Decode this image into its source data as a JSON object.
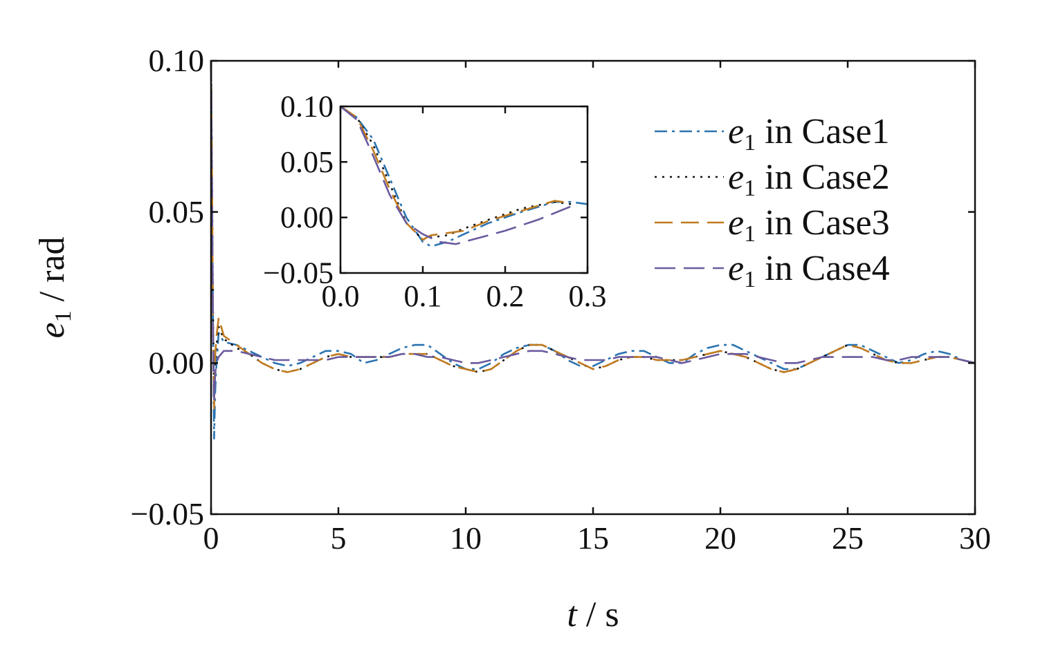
{
  "chart_data": [
    {
      "type": "line",
      "role": "main",
      "title": "",
      "xlabel": {
        "var": "t",
        "unit": " / s"
      },
      "ylabel": {
        "var": "e",
        "sub": "1",
        "unit": " / rad"
      },
      "xlim": [
        0,
        30
      ],
      "ylim": [
        -0.05,
        0.1
      ],
      "xticks": [
        0,
        5,
        10,
        15,
        20,
        25,
        30
      ],
      "xtick_labels": [
        "0",
        "5",
        "10",
        "15",
        "20",
        "25",
        "30"
      ],
      "yticks": [
        -0.05,
        0.0,
        0.05,
        0.1
      ],
      "ytick_labels": [
        "−0.05",
        "0.00",
        "0.05",
        "0.10"
      ],
      "grid": false,
      "legend_position": "top-right",
      "series": [
        {
          "name": "e1 in Case1",
          "legend_var": "e",
          "legend_sub": "1",
          "legend_text": " in Case1",
          "color": "#2a73b0",
          "dash": "18,7,4,7",
          "x": [
            0,
            0.03,
            0.08,
            0.12,
            0.16,
            0.2,
            0.3,
            0.5,
            1,
            1.5,
            2,
            2.5,
            3,
            3.5,
            4,
            4.5,
            5,
            5.5,
            6,
            6.5,
            7,
            7.5,
            8,
            8.5,
            9,
            9.5,
            10,
            10.5,
            11,
            11.5,
            12,
            12.5,
            13,
            13.5,
            14,
            14.5,
            15,
            15.5,
            16,
            16.5,
            17,
            17.5,
            18,
            18.5,
            19,
            19.5,
            20,
            20.5,
            21,
            21.5,
            22,
            22.5,
            23,
            23.5,
            24,
            24.5,
            25,
            25.5,
            26,
            26.5,
            27,
            27.5,
            28,
            28.5,
            29,
            29.5,
            30
          ],
          "y": [
            0.1,
            0.07,
            0.01,
            -0.025,
            -0.01,
            -0.002,
            0.01,
            0.007,
            0.006,
            0.004,
            0.002,
            0.0,
            -0.001,
            0.0,
            0.002,
            0.004,
            0.004,
            0.003,
            0.0,
            0.001,
            0.003,
            0.005,
            0.006,
            0.006,
            0.003,
            0.0,
            -0.002,
            -0.002,
            0.0,
            0.003,
            0.005,
            0.006,
            0.006,
            0.004,
            0.001,
            -0.001,
            -0.001,
            0.001,
            0.003,
            0.004,
            0.004,
            0.002,
            0.0,
            0.0,
            0.003,
            0.005,
            0.006,
            0.006,
            0.004,
            0.002,
            0.0,
            -0.002,
            -0.002,
            0.0,
            0.002,
            0.004,
            0.006,
            0.006,
            0.004,
            0.002,
            0.0,
            0.001,
            0.003,
            0.004,
            0.003,
            0.001,
            0.0
          ]
        },
        {
          "name": "e1 in Case2",
          "legend_var": "e",
          "legend_sub": "1",
          "legend_text": " in Case2",
          "color": "#111111",
          "dash": "3,8",
          "x": [
            0,
            0.03,
            0.08,
            0.12,
            0.16,
            0.2,
            0.3,
            0.5,
            1,
            1.5,
            2,
            2.5,
            3,
            3.5,
            4,
            4.5,
            5,
            5.5,
            6,
            6.5,
            7,
            7.5,
            8,
            8.5,
            9,
            9.5,
            10,
            10.5,
            11,
            11.5,
            12,
            12.5,
            13,
            13.5,
            14,
            14.5,
            15,
            15.5,
            16,
            16.5,
            17,
            17.5,
            18,
            18.5,
            19,
            19.5,
            20,
            20.5,
            21,
            21.5,
            22,
            22.5,
            23,
            23.5,
            24,
            24.5,
            25,
            25.5,
            26,
            26.5,
            27,
            27.5,
            28,
            28.5,
            29,
            29.5,
            30
          ],
          "y": [
            0.1,
            0.07,
            0.015,
            -0.012,
            0.0,
            0.005,
            0.012,
            0.008,
            0.005,
            0.003,
            0.0,
            -0.002,
            -0.003,
            -0.002,
            0.0,
            0.002,
            0.003,
            0.002,
            0.002,
            0.002,
            0.002,
            0.003,
            0.003,
            0.003,
            0.001,
            -0.001,
            -0.002,
            -0.003,
            -0.002,
            0.001,
            0.004,
            0.006,
            0.006,
            0.004,
            0.002,
            0.0,
            -0.002,
            -0.001,
            0.001,
            0.002,
            0.002,
            0.001,
            0.001,
            0.001,
            0.002,
            0.003,
            0.004,
            0.003,
            0.002,
            0.0,
            -0.002,
            -0.003,
            -0.002,
            0.0,
            0.002,
            0.004,
            0.006,
            0.005,
            0.003,
            0.001,
            0.0,
            0.0,
            0.001,
            0.002,
            0.002,
            0.001,
            0.0
          ]
        },
        {
          "name": "e1 in Case3",
          "legend_var": "e",
          "legend_sub": "1",
          "legend_text": " in Case3",
          "color": "#c07a1e",
          "dash": "26,12",
          "x": [
            0,
            0.03,
            0.08,
            0.12,
            0.16,
            0.2,
            0.3,
            0.5,
            1,
            1.5,
            2,
            2.5,
            3,
            3.5,
            4,
            4.5,
            5,
            5.5,
            6,
            6.5,
            7,
            7.5,
            8,
            8.5,
            9,
            9.5,
            10,
            10.5,
            11,
            11.5,
            12,
            12.5,
            13,
            13.5,
            14,
            14.5,
            15,
            15.5,
            16,
            16.5,
            17,
            17.5,
            18,
            18.5,
            19,
            19.5,
            20,
            20.5,
            21,
            21.5,
            22,
            22.5,
            23,
            23.5,
            24,
            24.5,
            25,
            25.5,
            26,
            26.5,
            27,
            27.5,
            28,
            28.5,
            29,
            29.5,
            30
          ],
          "y": [
            0.1,
            0.068,
            0.012,
            -0.015,
            0.002,
            0.008,
            0.015,
            0.009,
            0.006,
            0.003,
            0.0,
            -0.002,
            -0.003,
            -0.002,
            0.0,
            0.002,
            0.003,
            0.002,
            0.002,
            0.002,
            0.002,
            0.003,
            0.003,
            0.003,
            0.001,
            -0.001,
            -0.002,
            -0.003,
            -0.002,
            0.001,
            0.004,
            0.006,
            0.006,
            0.004,
            0.002,
            0.0,
            -0.002,
            -0.001,
            0.001,
            0.002,
            0.002,
            0.001,
            0.001,
            0.001,
            0.002,
            0.003,
            0.004,
            0.003,
            0.002,
            0.0,
            -0.002,
            -0.003,
            -0.002,
            0.0,
            0.002,
            0.004,
            0.006,
            0.005,
            0.003,
            0.001,
            0.0,
            0.0,
            0.001,
            0.002,
            0.002,
            0.001,
            0.0
          ]
        },
        {
          "name": "e1 in Case4",
          "legend_var": "e",
          "legend_sub": "1",
          "legend_text": " in Case4",
          "color": "#6a5a9e",
          "dash": "30,12",
          "x": [
            0,
            0.03,
            0.08,
            0.12,
            0.16,
            0.2,
            0.3,
            0.5,
            1,
            1.5,
            2,
            2.5,
            3,
            3.5,
            4,
            4.5,
            5,
            5.5,
            6,
            6.5,
            7,
            7.5,
            8,
            8.5,
            9,
            9.5,
            10,
            10.5,
            11,
            11.5,
            12,
            12.5,
            13,
            13.5,
            14,
            14.5,
            15,
            15.5,
            16,
            16.5,
            17,
            17.5,
            18,
            18.5,
            19,
            19.5,
            20,
            20.5,
            21,
            21.5,
            22,
            22.5,
            23,
            23.5,
            24,
            24.5,
            25,
            25.5,
            26,
            26.5,
            27,
            27.5,
            28,
            28.5,
            29,
            29.5,
            30
          ],
          "y": [
            0.1,
            0.065,
            0.01,
            -0.012,
            -0.004,
            0.0,
            0.002,
            0.004,
            0.004,
            0.003,
            0.002,
            0.001,
            0.001,
            0.001,
            0.001,
            0.001,
            0.002,
            0.002,
            0.002,
            0.002,
            0.002,
            0.003,
            0.003,
            0.002,
            0.002,
            0.001,
            0.0,
            0.0,
            0.001,
            0.002,
            0.003,
            0.004,
            0.004,
            0.003,
            0.002,
            0.001,
            0.001,
            0.001,
            0.002,
            0.002,
            0.002,
            0.002,
            0.001,
            0.0,
            0.001,
            0.002,
            0.003,
            0.003,
            0.003,
            0.002,
            0.001,
            0.0,
            0.0,
            0.001,
            0.002,
            0.002,
            0.002,
            0.002,
            0.002,
            0.001,
            0.001,
            0.002,
            0.002,
            0.002,
            0.002,
            0.001,
            0.0
          ]
        }
      ]
    },
    {
      "type": "line",
      "role": "inset",
      "xlim": [
        0,
        0.3
      ],
      "ylim": [
        -0.05,
        0.1
      ],
      "xticks": [
        0.0,
        0.1,
        0.2,
        0.3
      ],
      "xtick_labels": [
        "0.0",
        "0.1",
        "0.2",
        "0.3"
      ],
      "yticks": [
        -0.05,
        0.0,
        0.05,
        0.1
      ],
      "ytick_labels": [
        "−0.05",
        "0.00",
        "0.05",
        "0.10"
      ],
      "series": [
        {
          "name": "e1 in Case1",
          "color": "#2a73b0",
          "dash": "18,7,4,7",
          "x": [
            0,
            0.02,
            0.04,
            0.06,
            0.08,
            0.1,
            0.11,
            0.13,
            0.15,
            0.18,
            0.22,
            0.26,
            0.28,
            0.3
          ],
          "y": [
            0.1,
            0.09,
            0.07,
            0.035,
            0.0,
            -0.022,
            -0.026,
            -0.022,
            -0.015,
            -0.005,
            0.005,
            0.014,
            0.014,
            0.012
          ]
        },
        {
          "name": "e1 in Case2",
          "color": "#111111",
          "dash": "3,8",
          "x": [
            0,
            0.02,
            0.04,
            0.06,
            0.08,
            0.1,
            0.11,
            0.13,
            0.15,
            0.18,
            0.22,
            0.26,
            0.28
          ],
          "y": [
            0.1,
            0.09,
            0.065,
            0.03,
            -0.005,
            -0.02,
            -0.018,
            -0.016,
            -0.01,
            -0.002,
            0.008,
            0.014,
            0.012
          ]
        },
        {
          "name": "e1 in Case3",
          "color": "#c07a1e",
          "dash": "26,12",
          "x": [
            0,
            0.02,
            0.04,
            0.06,
            0.08,
            0.1,
            0.11,
            0.13,
            0.15,
            0.18,
            0.22,
            0.26,
            0.28
          ],
          "y": [
            0.1,
            0.09,
            0.06,
            0.025,
            -0.005,
            -0.02,
            -0.016,
            -0.014,
            -0.012,
            -0.003,
            0.006,
            0.015,
            0.013
          ]
        },
        {
          "name": "e1 in Case4",
          "color": "#6a5a9e",
          "dash": "30,12",
          "x": [
            0,
            0.02,
            0.04,
            0.06,
            0.08,
            0.1,
            0.12,
            0.14,
            0.16,
            0.2,
            0.24,
            0.28
          ],
          "y": [
            0.1,
            0.088,
            0.055,
            0.02,
            -0.005,
            -0.015,
            -0.022,
            -0.024,
            -0.02,
            -0.012,
            -0.002,
            0.01
          ]
        }
      ]
    }
  ]
}
